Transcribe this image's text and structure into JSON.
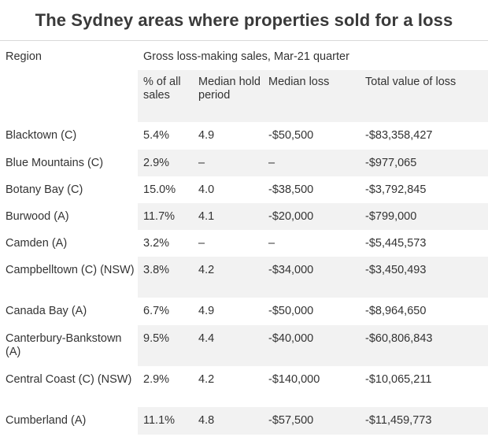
{
  "title": "The Sydney areas where properties sold for a loss",
  "header": {
    "region_label": "Region",
    "group_label": "Gross loss-making sales, Mar-21 quarter",
    "col_pct": "% of all sales",
    "col_hold": "Median hold period",
    "col_loss": "Median loss",
    "col_total": "Total value of loss"
  },
  "rows": [
    {
      "region": "Blacktown (C)",
      "pct": "5.4%",
      "hold": "4.9",
      "loss": "-$50,500",
      "total": "-$83,358,427"
    },
    {
      "region": "Blue Mountains (C)",
      "pct": "2.9%",
      "hold": "–",
      "loss": "–",
      "total": "-$977,065"
    },
    {
      "region": "Botany Bay (C)",
      "pct": "15.0%",
      "hold": "4.0",
      "loss": "-$38,500",
      "total": "-$3,792,845"
    },
    {
      "region": "Burwood (A)",
      "pct": "11.7%",
      "hold": "4.1",
      "loss": "-$20,000",
      "total": "-$799,000"
    },
    {
      "region": "Camden (A)",
      "pct": "3.2%",
      "hold": "–",
      "loss": "–",
      "total": "-$5,445,573"
    },
    {
      "region": "Campbelltown (C) (NSW)",
      "pct": "3.8%",
      "hold": "4.2",
      "loss": "-$34,000",
      "total": "-$3,450,493"
    },
    {
      "region": "Canada Bay (A)",
      "pct": "6.7%",
      "hold": "4.9",
      "loss": "-$50,000",
      "total": "-$8,964,650"
    },
    {
      "region": "Canterbury-Bankstown (A)",
      "pct": "9.5%",
      "hold": "4.4",
      "loss": "-$40,000",
      "total": "-$60,806,843"
    },
    {
      "region": "Central Coast (C) (NSW)",
      "pct": "2.9%",
      "hold": "4.2",
      "loss": "-$140,000",
      "total": "-$10,065,211"
    },
    {
      "region": "Cumberland (A)",
      "pct": "11.1%",
      "hold": "4.8",
      "loss": "-$57,500",
      "total": "-$11,459,773"
    }
  ]
}
